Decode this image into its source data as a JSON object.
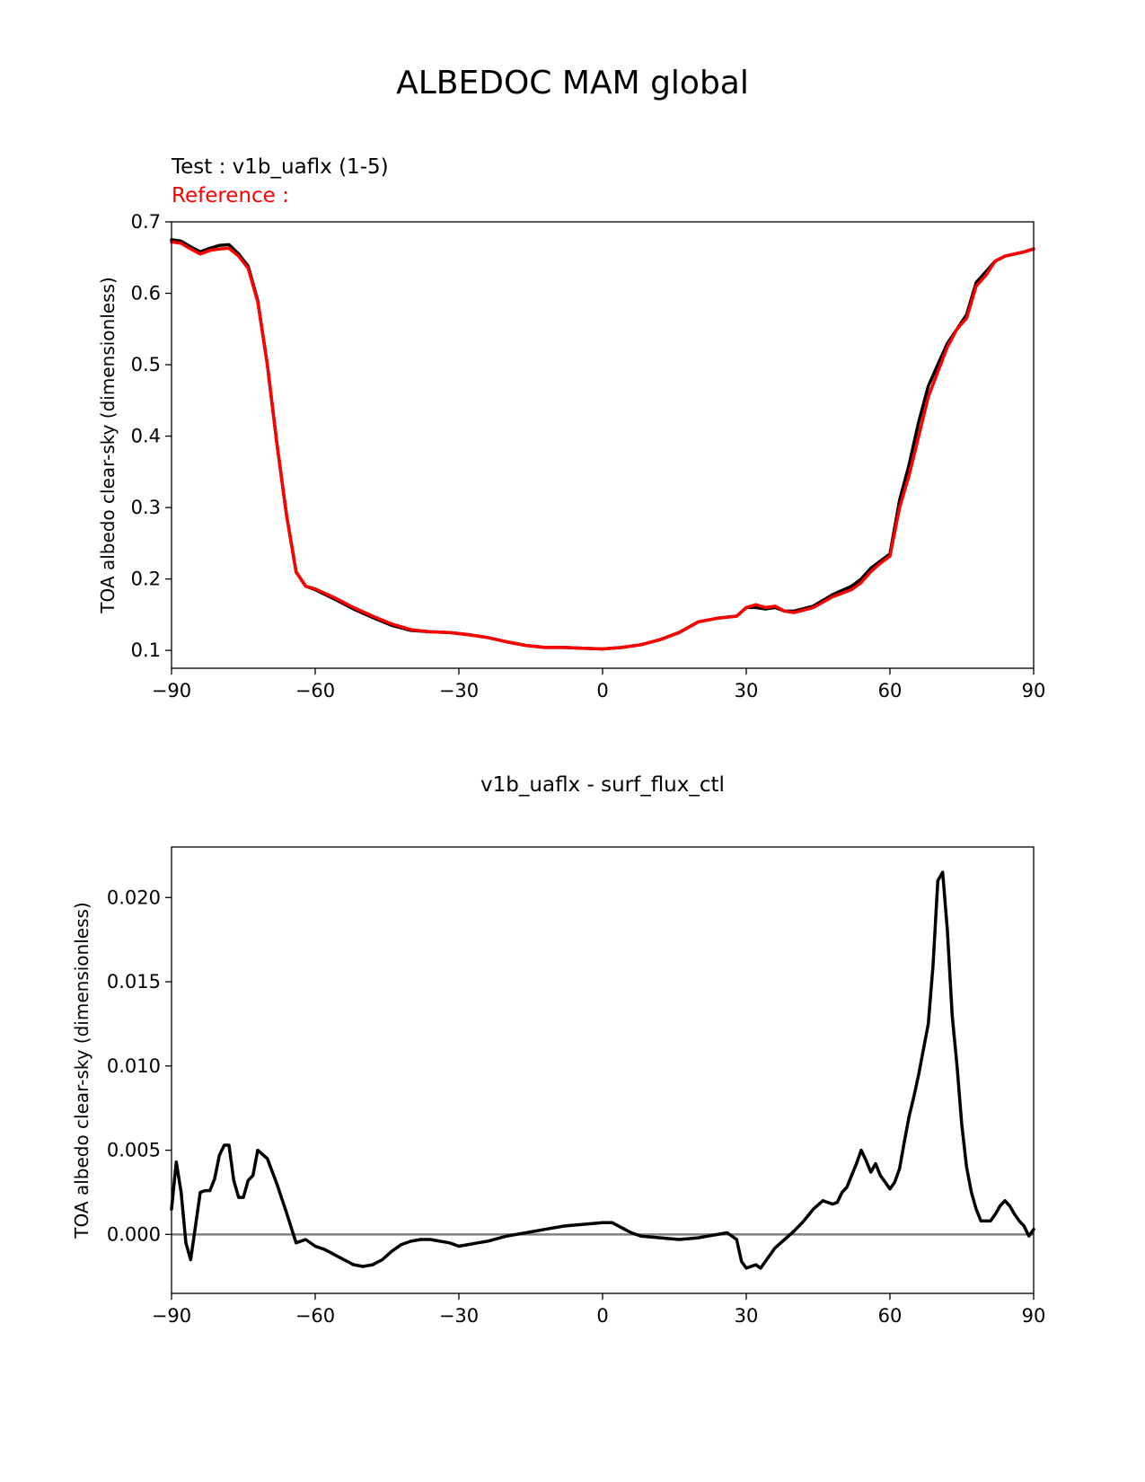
{
  "figure": {
    "title": "ALBEDOC MAM global",
    "test_label": "Test : v1b_uaflx (1-5)",
    "reference_label": "Reference :",
    "diff_title": "v1b_uaflx - surf_flux_ctl",
    "colors": {
      "test": "#000000",
      "reference": "#ff0000",
      "zero_line": "#808080"
    }
  },
  "chart_data": [
    {
      "type": "line",
      "title": "",
      "xlabel": "",
      "ylabel": "TOA albedo clear-sky (dimensionless)",
      "xlim": [
        -90,
        90
      ],
      "ylim": [
        0.075,
        0.7
      ],
      "xticks": [
        -90,
        -60,
        -30,
        0,
        30,
        60,
        90
      ],
      "xtick_labels": [
        "−90",
        "−60",
        "−30",
        "0",
        "30",
        "60",
        "90"
      ],
      "yticks": [
        0.1,
        0.2,
        0.3,
        0.4,
        0.5,
        0.6,
        0.7
      ],
      "ytick_labels": [
        "0.1",
        "0.2",
        "0.3",
        "0.4",
        "0.5",
        "0.6",
        "0.7"
      ],
      "grid": false,
      "series": [
        {
          "name": "Test : v1b_uaflx (1-5)",
          "color": "#000000",
          "x": [
            -90,
            -88,
            -86,
            -84,
            -82,
            -80,
            -78,
            -76,
            -74,
            -72,
            -70,
            -68,
            -66,
            -64,
            -62,
            -60,
            -56,
            -52,
            -48,
            -44,
            -40,
            -36,
            -32,
            -28,
            -24,
            -20,
            -16,
            -12,
            -8,
            -4,
            0,
            4,
            8,
            12,
            16,
            20,
            24,
            28,
            30,
            32,
            34,
            36,
            38,
            40,
            44,
            48,
            52,
            54,
            56,
            58,
            60,
            62,
            64,
            66,
            68,
            70,
            72,
            74,
            76,
            78,
            80,
            82,
            84,
            86,
            88,
            90
          ],
          "y": [
            0.675,
            0.673,
            0.665,
            0.658,
            0.663,
            0.667,
            0.668,
            0.655,
            0.638,
            0.59,
            0.5,
            0.39,
            0.29,
            0.21,
            0.19,
            0.185,
            0.172,
            0.158,
            0.146,
            0.135,
            0.128,
            0.126,
            0.125,
            0.122,
            0.118,
            0.112,
            0.107,
            0.104,
            0.104,
            0.103,
            0.102,
            0.104,
            0.108,
            0.115,
            0.125,
            0.14,
            0.145,
            0.148,
            0.16,
            0.16,
            0.158,
            0.16,
            0.155,
            0.155,
            0.162,
            0.178,
            0.19,
            0.2,
            0.215,
            0.225,
            0.235,
            0.31,
            0.36,
            0.42,
            0.47,
            0.5,
            0.53,
            0.55,
            0.57,
            0.615,
            0.63,
            0.645,
            0.652,
            0.655,
            0.658,
            0.662
          ]
        },
        {
          "name": "Reference :",
          "color": "#ff0000",
          "x": [
            -90,
            -88,
            -86,
            -84,
            -82,
            -80,
            -78,
            -76,
            -74,
            -72,
            -70,
            -68,
            -66,
            -64,
            -62,
            -60,
            -56,
            -52,
            -48,
            -44,
            -40,
            -36,
            -32,
            -28,
            -24,
            -20,
            -16,
            -12,
            -8,
            -4,
            0,
            4,
            8,
            12,
            16,
            20,
            24,
            28,
            30,
            32,
            34,
            36,
            38,
            40,
            44,
            48,
            52,
            54,
            56,
            58,
            60,
            62,
            64,
            66,
            68,
            70,
            72,
            74,
            76,
            78,
            80,
            82,
            84,
            86,
            88,
            90
          ],
          "y": [
            0.672,
            0.67,
            0.662,
            0.655,
            0.66,
            0.662,
            0.663,
            0.652,
            0.635,
            0.588,
            0.5,
            0.39,
            0.29,
            0.21,
            0.19,
            0.186,
            0.174,
            0.16,
            0.148,
            0.137,
            0.129,
            0.126,
            0.125,
            0.122,
            0.118,
            0.112,
            0.107,
            0.104,
            0.104,
            0.103,
            0.102,
            0.104,
            0.108,
            0.115,
            0.125,
            0.14,
            0.145,
            0.148,
            0.16,
            0.164,
            0.16,
            0.162,
            0.155,
            0.153,
            0.16,
            0.175,
            0.185,
            0.195,
            0.21,
            0.222,
            0.232,
            0.3,
            0.345,
            0.4,
            0.455,
            0.49,
            0.525,
            0.55,
            0.565,
            0.61,
            0.625,
            0.645,
            0.652,
            0.655,
            0.658,
            0.662
          ]
        }
      ]
    },
    {
      "type": "line",
      "title": "v1b_uaflx - surf_flux_ctl",
      "xlabel": "",
      "ylabel": "TOA albedo clear-sky (dimensionless)",
      "xlim": [
        -90,
        90
      ],
      "ylim": [
        -0.0035,
        0.023
      ],
      "xticks": [
        -90,
        -60,
        -30,
        0,
        30,
        60,
        90
      ],
      "xtick_labels": [
        "−90",
        "−60",
        "−30",
        "0",
        "30",
        "60",
        "90"
      ],
      "yticks": [
        0.0,
        0.005,
        0.01,
        0.015,
        0.02
      ],
      "ytick_labels": [
        "0.000",
        "0.005",
        "0.010",
        "0.015",
        "0.020"
      ],
      "grid": false,
      "zero_line": 0.0,
      "series": [
        {
          "name": "v1b_uaflx - surf_flux_ctl",
          "color": "#000000",
          "x": [
            -90,
            -89,
            -88,
            -87,
            -86,
            -85,
            -84,
            -83,
            -82,
            -81,
            -80,
            -79,
            -78,
            -77,
            -76,
            -75,
            -74,
            -73,
            -72,
            -70,
            -68,
            -66,
            -64,
            -62,
            -60,
            -58,
            -54,
            -52,
            -50,
            -48,
            -46,
            -44,
            -42,
            -40,
            -38,
            -36,
            -32,
            -30,
            -28,
            -26,
            -24,
            -20,
            -16,
            -12,
            -8,
            -4,
            0,
            2,
            4,
            6,
            8,
            12,
            16,
            20,
            22,
            24,
            26,
            28,
            29,
            30,
            31,
            32,
            33,
            34,
            36,
            38,
            40,
            42,
            44,
            46,
            48,
            49,
            50,
            51,
            52,
            53,
            54,
            55,
            56,
            57,
            58,
            59,
            60,
            61,
            62,
            63,
            64,
            65,
            66,
            67,
            68,
            69,
            70,
            71,
            72,
            73,
            74,
            75,
            76,
            77,
            78,
            79,
            80,
            81,
            82,
            83,
            84,
            85,
            86,
            87,
            88,
            89,
            90
          ],
          "y": [
            0.0015,
            0.0043,
            0.0025,
            -0.0005,
            -0.0015,
            0.0005,
            0.0025,
            0.0026,
            0.0026,
            0.0033,
            0.0047,
            0.0053,
            0.0053,
            0.0032,
            0.0022,
            0.0022,
            0.0032,
            0.0035,
            0.005,
            0.0045,
            0.003,
            0.0013,
            -0.0005,
            -0.0003,
            -0.0007,
            -0.0009,
            -0.0015,
            -0.0018,
            -0.0019,
            -0.0018,
            -0.0015,
            -0.001,
            -0.0006,
            -0.0004,
            -0.0003,
            -0.0003,
            -0.0005,
            -0.0007,
            -0.0006,
            -0.0005,
            -0.0004,
            -0.0001,
            0.0001,
            0.0003,
            0.0005,
            0.0006,
            0.0007,
            0.0007,
            0.0004,
            0.0001,
            -0.0001,
            -0.0002,
            -0.0003,
            -0.0002,
            -0.0001,
            0.0,
            0.0001,
            -0.0003,
            -0.0016,
            -0.002,
            -0.0019,
            -0.0018,
            -0.002,
            -0.0016,
            -0.0008,
            -0.0003,
            0.0002,
            0.0008,
            0.0015,
            0.002,
            0.0018,
            0.0019,
            0.0025,
            0.0028,
            0.0035,
            0.0042,
            0.005,
            0.0044,
            0.0037,
            0.0042,
            0.0035,
            0.0031,
            0.0027,
            0.0031,
            0.0039,
            0.0055,
            0.007,
            0.0082,
            0.0095,
            0.011,
            0.0125,
            0.016,
            0.021,
            0.0215,
            0.018,
            0.013,
            0.01,
            0.0065,
            0.004,
            0.0025,
            0.0015,
            0.0008,
            0.0008,
            0.0008,
            0.0012,
            0.0017,
            0.002,
            0.0017,
            0.0012,
            0.0008,
            0.0005,
            -0.0001,
            0.0003
          ]
        }
      ]
    }
  ]
}
